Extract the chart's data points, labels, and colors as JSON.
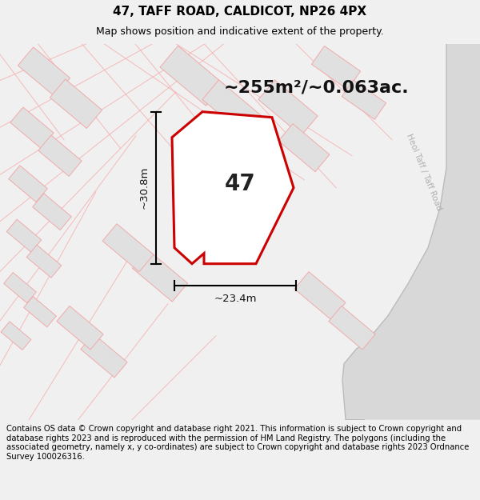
{
  "title": "47, TAFF ROAD, CALDICOT, NP26 4PX",
  "subtitle": "Map shows position and indicative extent of the property.",
  "area_text": "~255m²/~0.063ac.",
  "width_label": "~23.4m",
  "height_label": "~30.8m",
  "property_label": "47",
  "footer": "Contains OS data © Crown copyright and database right 2021. This information is subject to Crown copyright and database rights 2023 and is reproduced with the permission of HM Land Registry. The polygons (including the associated geometry, namely x, y co-ordinates) are subject to Crown copyright and database rights 2023 Ordnance Survey 100026316.",
  "bg_color": "#f0f0f0",
  "map_bg": "#ffffff",
  "property_fill": "#ffffff",
  "property_edge": "#cc0000",
  "road_label": "Heol Taff / Taff Road",
  "title_fontsize": 11,
  "subtitle_fontsize": 9,
  "area_fontsize": 16,
  "footer_fontsize": 7.2,
  "parcel_fill": "#e0e0e0",
  "parcel_edge": "#f0aaaa",
  "street_color": "#f0aaaa",
  "road_fill": "#d8d8d8",
  "road_edge": "#cccccc"
}
